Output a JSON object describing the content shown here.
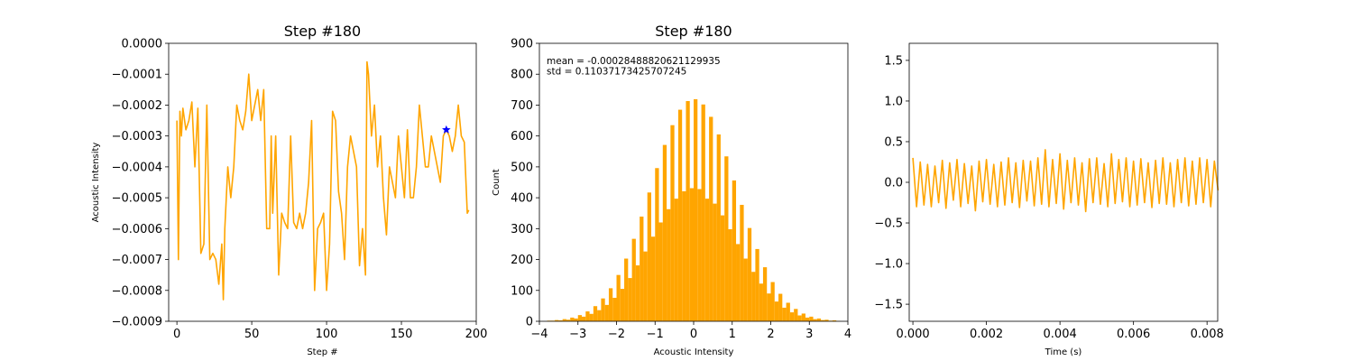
{
  "chart_data": [
    {
      "type": "line",
      "title": "Step #180",
      "xlabel": "Step #",
      "ylabel": "Acoustic Intensity",
      "color": "orange",
      "x": [
        0,
        1,
        2,
        3,
        4,
        6,
        8,
        10,
        12,
        14,
        16,
        18,
        20,
        22,
        24,
        26,
        28,
        30,
        31,
        32,
        34,
        36,
        38,
        40,
        42,
        44,
        46,
        48,
        50,
        52,
        54,
        56,
        58,
        60,
        62,
        63,
        64,
        66,
        68,
        70,
        72,
        74,
        76,
        78,
        80,
        82,
        84,
        86,
        88,
        90,
        92,
        94,
        96,
        98,
        100,
        102,
        104,
        106,
        108,
        110,
        112,
        114,
        116,
        118,
        120,
        122,
        124,
        126,
        127,
        128,
        130,
        132,
        134,
        136,
        138,
        140,
        142,
        144,
        146,
        148,
        150,
        152,
        154,
        156,
        158,
        160,
        162,
        164,
        166,
        168,
        170,
        172,
        174,
        176,
        178,
        180,
        182,
        184,
        186,
        188,
        190,
        192,
        194,
        195
      ],
      "values": [
        -0.00025,
        -0.0007,
        -0.00022,
        -0.0003,
        -0.00021,
        -0.00028,
        -0.00025,
        -0.00019,
        -0.0004,
        -0.00021,
        -0.00068,
        -0.00065,
        -0.0002,
        -0.0007,
        -0.00068,
        -0.0007,
        -0.00078,
        -0.00065,
        -0.00083,
        -0.0006,
        -0.0004,
        -0.0005,
        -0.0004,
        -0.0002,
        -0.00025,
        -0.00028,
        -0.00022,
        -0.0001,
        -0.00025,
        -0.0002,
        -0.00015,
        -0.00025,
        -0.00015,
        -0.0006,
        -0.0006,
        -0.0003,
        -0.00055,
        -0.0003,
        -0.00075,
        -0.00055,
        -0.00058,
        -0.0006,
        -0.0003,
        -0.00058,
        -0.0006,
        -0.00055,
        -0.0006,
        -0.00055,
        -0.00045,
        -0.00025,
        -0.0008,
        -0.0006,
        -0.00058,
        -0.00055,
        -0.0008,
        -0.00065,
        -0.00022,
        -0.00025,
        -0.00048,
        -0.00055,
        -0.0007,
        -0.0004,
        -0.0003,
        -0.00035,
        -0.0004,
        -0.00072,
        -0.0006,
        -0.00075,
        -6e-05,
        -0.0001,
        -0.0003,
        -0.0002,
        -0.0004,
        -0.0003,
        -0.0005,
        -0.00062,
        -0.0004,
        -0.00045,
        -0.0005,
        -0.0003,
        -0.0004,
        -0.0005,
        -0.00028,
        -0.0005,
        -0.0005,
        -0.0004,
        -0.0002,
        -0.0003,
        -0.0004,
        -0.0004,
        -0.0003,
        -0.00035,
        -0.0004,
        -0.00045,
        -0.0003,
        -0.00028,
        -0.0003,
        -0.00035,
        -0.0003,
        -0.0002,
        -0.0003,
        -0.00032,
        -0.00055,
        -0.00054
      ],
      "marker": {
        "x": 180,
        "y": -0.00028,
        "color": "blue"
      },
      "xlim": [
        -5.5,
        200
      ],
      "xticks": [
        0,
        50,
        100,
        150,
        200
      ],
      "ylim": [
        -0.0009,
        0
      ],
      "yticks": [
        {
          "value": 0,
          "label": "0.0000"
        },
        {
          "value": -0.0001,
          "label": "−0.0001"
        },
        {
          "value": -0.0002,
          "label": "−0.0002"
        },
        {
          "value": -0.0003,
          "label": "−0.0003"
        },
        {
          "value": -0.0004,
          "label": "−0.0004"
        },
        {
          "value": -0.0005,
          "label": "−0.0005"
        },
        {
          "value": -0.0006,
          "label": "−0.0006"
        },
        {
          "value": -0.0007,
          "label": "−0.0007"
        },
        {
          "value": -0.0008,
          "label": "−0.0008"
        },
        {
          "value": -0.0009,
          "label": "−0.0009"
        }
      ]
    },
    {
      "type": "histogram",
      "title": "Step #180",
      "xlabel": "Acoustic Intensity",
      "ylabel": "Count",
      "color": "orange",
      "annotations": [
        "mean = -0.00028488820621129935",
        "std = 0.11037173425707245"
      ],
      "bins": [
        -3.8,
        -3.7,
        -3.6,
        -3.5,
        -3.4,
        -3.3,
        -3.2,
        -3.1,
        -3.0,
        -2.9,
        -2.8,
        -2.7,
        -2.6,
        -2.5,
        -2.4,
        -2.3,
        -2.2,
        -2.1,
        -2.0,
        -1.9,
        -1.8,
        -1.7,
        -1.6,
        -1.5,
        -1.4,
        -1.3,
        -1.2,
        -1.1,
        -1.0,
        -0.9,
        -0.8,
        -0.7,
        -0.6,
        -0.5,
        -0.4,
        -0.3,
        -0.2,
        -0.1,
        0.0,
        0.1,
        0.2,
        0.3,
        0.4,
        0.5,
        0.6,
        0.7,
        0.8,
        0.9,
        1.0,
        1.1,
        1.2,
        1.3,
        1.4,
        1.5,
        1.6,
        1.7,
        1.8,
        1.9,
        2.0,
        2.1,
        2.2,
        2.3,
        2.4,
        2.5,
        2.6,
        2.7,
        2.8,
        2.9,
        3.0,
        3.1,
        3.2,
        3.3,
        3.4,
        3.5,
        3.6,
        3.7,
        3.8
      ],
      "values": [
        2,
        2,
        4,
        3,
        7,
        5,
        12,
        9,
        20,
        15,
        32,
        24,
        49,
        36,
        74,
        53,
        107,
        76,
        150,
        105,
        203,
        140,
        267,
        181,
        339,
        226,
        417,
        274,
        496,
        320,
        571,
        363,
        635,
        397,
        685,
        421,
        713,
        431,
        719,
        428,
        702,
        397,
        662,
        381,
        605,
        343,
        534,
        298,
        456,
        250,
        377,
        203,
        302,
        160,
        234,
        122,
        175,
        90,
        127,
        64,
        89,
        44,
        60,
        29,
        40,
        19,
        25,
        12,
        15,
        7,
        9,
        4,
        5,
        2,
        3,
        1
      ],
      "xlim": [
        -4,
        4
      ],
      "xticks": [
        {
          "value": -4,
          "label": "−4"
        },
        {
          "value": -3,
          "label": "−3"
        },
        {
          "value": -2,
          "label": "−2"
        },
        {
          "value": -1,
          "label": "−1"
        },
        0,
        1,
        2,
        3,
        4
      ],
      "ylim": [
        0,
        900
      ],
      "yticks": [
        0,
        100,
        200,
        300,
        400,
        500,
        600,
        700,
        800,
        900
      ]
    },
    {
      "type": "line",
      "xlabel": "Time (s)",
      "color": "orange",
      "x": [
        0,
        0.0001,
        0.0002,
        0.0003,
        0.0004,
        0.0005,
        0.0006,
        0.0007,
        0.0008,
        0.0009,
        0.001,
        0.0011,
        0.0012,
        0.0013,
        0.0014,
        0.0015,
        0.0016,
        0.0017,
        0.0018,
        0.0019,
        0.002,
        0.0021,
        0.0022,
        0.0023,
        0.0024,
        0.0025,
        0.0026,
        0.0027,
        0.0028,
        0.0029,
        0.003,
        0.0031,
        0.0032,
        0.0033,
        0.0034,
        0.0035,
        0.0036,
        0.0037,
        0.0038,
        0.0039,
        0.004,
        0.0041,
        0.0042,
        0.0043,
        0.0044,
        0.0045,
        0.0046,
        0.0047,
        0.0048,
        0.0049,
        0.005,
        0.0051,
        0.0052,
        0.0053,
        0.0054,
        0.0055,
        0.0056,
        0.0057,
        0.0058,
        0.0059,
        0.006,
        0.0061,
        0.0062,
        0.0063,
        0.0064,
        0.0065,
        0.0066,
        0.0067,
        0.0068,
        0.0069,
        0.007,
        0.0071,
        0.0072,
        0.0073,
        0.0074,
        0.0075,
        0.0076,
        0.0077,
        0.0078,
        0.0079,
        0.008,
        0.0081,
        0.0082,
        0.0083
      ],
      "values": [
        0.3,
        -0.3,
        0.25,
        -0.28,
        0.22,
        -0.3,
        0.2,
        -0.25,
        0.27,
        -0.32,
        0.24,
        -0.22,
        0.28,
        -0.3,
        0.23,
        -0.26,
        0.2,
        -0.35,
        0.26,
        -0.24,
        0.28,
        -0.27,
        0.22,
        -0.3,
        0.25,
        -0.28,
        0.3,
        -0.25,
        0.24,
        -0.31,
        0.27,
        -0.23,
        0.26,
        -0.29,
        0.3,
        -0.27,
        0.4,
        -0.3,
        0.28,
        -0.26,
        0.35,
        -0.33,
        0.27,
        -0.25,
        0.3,
        -0.28,
        0.24,
        -0.36,
        0.29,
        -0.25,
        0.3,
        -0.27,
        0.23,
        -0.3,
        0.35,
        -0.26,
        0.28,
        -0.24,
        0.3,
        -0.3,
        0.26,
        -0.28,
        0.29,
        -0.25,
        0.24,
        -0.31,
        0.27,
        -0.26,
        0.3,
        -0.27,
        0.24,
        -0.3,
        0.28,
        -0.25,
        0.3,
        -0.29,
        0.26,
        -0.27,
        0.3,
        -0.25,
        0.28,
        -0.3,
        0.26,
        -0.1
      ],
      "xlim": [
        -0.0001,
        0.00829
      ],
      "xticks": [
        {
          "value": 0,
          "label": "0.000"
        },
        {
          "value": 0.002,
          "label": "0.002"
        },
        {
          "value": 0.004,
          "label": "0.004"
        },
        {
          "value": 0.006,
          "label": "0.006"
        },
        {
          "value": 0.008,
          "label": "0.008"
        }
      ],
      "ylim": [
        -1.71,
        1.71
      ],
      "yticks": [
        {
          "value": 1.5,
          "label": "1.5"
        },
        {
          "value": 1,
          "label": "1.0"
        },
        {
          "value": 0.5,
          "label": "0.5"
        },
        {
          "value": 0,
          "label": "0.0"
        },
        {
          "value": -0.5,
          "label": "−0.5"
        },
        {
          "value": -1,
          "label": "−1.0"
        },
        {
          "value": -1.5,
          "label": "−1.5"
        }
      ]
    }
  ]
}
